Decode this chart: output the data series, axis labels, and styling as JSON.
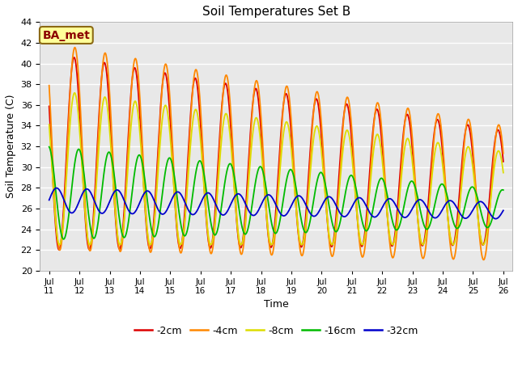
{
  "title": "Soil Temperatures Set B",
  "xlabel": "Time",
  "ylabel": "Soil Temperature (C)",
  "ylim": [
    20,
    44
  ],
  "yticks": [
    20,
    22,
    24,
    26,
    28,
    30,
    32,
    34,
    36,
    38,
    40,
    42,
    44
  ],
  "fig_facecolor": "#ffffff",
  "ax_facecolor": "#e8e8e8",
  "series": [
    {
      "label": "-2cm",
      "color": "#dd0000",
      "linewidth": 1.3
    },
    {
      "label": "-4cm",
      "color": "#ff8800",
      "linewidth": 1.3
    },
    {
      "label": "-8cm",
      "color": "#dddd00",
      "linewidth": 1.3
    },
    {
      "label": "-16cm",
      "color": "#00bb00",
      "linewidth": 1.3
    },
    {
      "label": "-32cm",
      "color": "#0000cc",
      "linewidth": 1.3
    }
  ],
  "annotation": {
    "text": "BA_met",
    "fontsize": 10,
    "color": "#8b0000",
    "bg_color": "#ffff99",
    "border_color": "#8b6914"
  },
  "xtick_labels": [
    "Jul 11",
    "Jul 12",
    "Jul 13",
    "Jul 14",
    "Jul 15",
    "Jul 16",
    "Jul 17",
    "Jul 18",
    "Jul 19",
    "Jul 20",
    "Jul 21",
    "Jul 22",
    "Jul 23",
    "Jul 24",
    "Jul 25",
    "Jul 26"
  ],
  "n_points": 1500,
  "days": 15
}
